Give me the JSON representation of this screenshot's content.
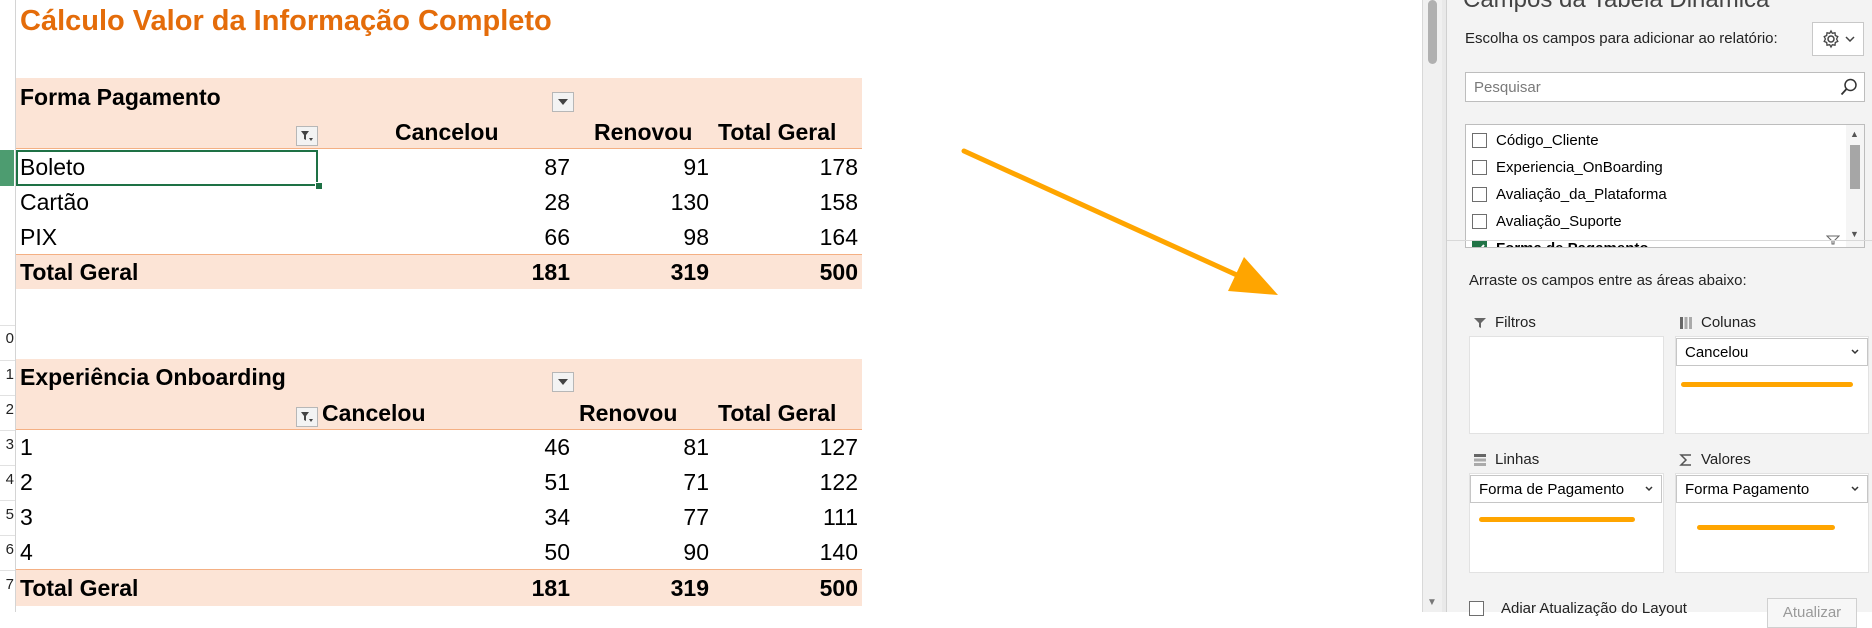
{
  "sheet": {
    "title": "Cálculo Valor da Informação Completo",
    "row_numbers": [
      "0",
      "1",
      "2",
      "3",
      "4",
      "5",
      "6",
      "7"
    ],
    "pivot1": {
      "field_label": "Forma Pagamento",
      "col1": "Cancelou",
      "col2": "Renovou",
      "col3": "Total Geral",
      "rows": [
        {
          "label": "Boleto",
          "c1": "87",
          "c2": "91",
          "t": "178"
        },
        {
          "label": "Cartão",
          "c1": "28",
          "c2": "130",
          "t": "158"
        },
        {
          "label": "PIX",
          "c1": "66",
          "c2": "98",
          "t": "164"
        }
      ],
      "total": {
        "label": "Total Geral",
        "c1": "181",
        "c2": "319",
        "t": "500"
      }
    },
    "pivot2": {
      "field_label": "Experiência Onboarding",
      "col1": "Cancelou",
      "col2": "Renovou",
      "col3": "Total Geral",
      "rows": [
        {
          "label": "1",
          "c1": "46",
          "c2": "81",
          "t": "127"
        },
        {
          "label": "2",
          "c1": "51",
          "c2": "71",
          "t": "122"
        },
        {
          "label": "3",
          "c1": "34",
          "c2": "77",
          "t": "111"
        },
        {
          "label": "4",
          "c1": "50",
          "c2": "90",
          "t": "140"
        }
      ],
      "total": {
        "label": "Total Geral",
        "c1": "181",
        "c2": "319",
        "t": "500"
      }
    }
  },
  "pane": {
    "title": "Campos da Tabela Dinâmica",
    "subtitle": "Escolha os campos para adicionar ao relatório:",
    "search_placeholder": "Pesquisar",
    "fields": [
      {
        "label": "Código_Cliente",
        "checked": false
      },
      {
        "label": "Experiencia_OnBoarding",
        "checked": false
      },
      {
        "label": "Avaliação_da_Plataforma",
        "checked": false
      },
      {
        "label": "Avaliação_Suporte",
        "checked": false
      },
      {
        "label": "Forma de Pagamento",
        "checked": true
      }
    ],
    "hint": "Arraste os campos entre as áreas abaixo:",
    "areas": {
      "filters": {
        "label": "Filtros"
      },
      "columns": {
        "label": "Colunas",
        "item": "Cancelou"
      },
      "rows": {
        "label": "Linhas",
        "item": "Forma de Pagamento"
      },
      "values": {
        "label": "Valores",
        "item": "Forma Pagamento"
      }
    },
    "defer_label": "Adiar Atualização do Layout",
    "update_label": "Atualizar"
  },
  "colors": {
    "title": "#e46c0a",
    "pivot_band": "#fce4d6",
    "annotation": "#ffa500",
    "checked": "#217346"
  },
  "icons": [
    "filter-dropdown-icon",
    "gear-icon",
    "search-icon",
    "filter-icon",
    "columns-icon",
    "rows-icon",
    "sigma-icon",
    "chevron-down-icon",
    "arrow-annotation"
  ]
}
